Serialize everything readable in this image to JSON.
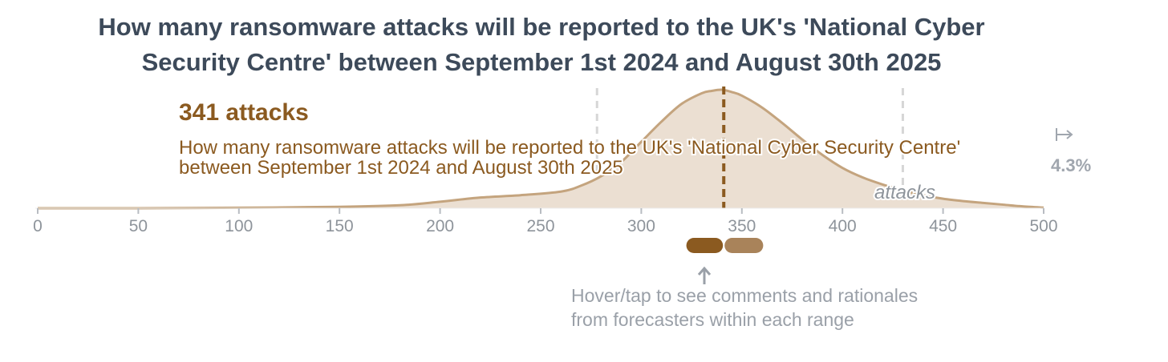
{
  "header": {
    "title_line1": "How many ransomware attacks will be reported to the UK's 'National Cyber",
    "title_line2": "Security Centre' between September 1st 2024 and August 30th 2025"
  },
  "chart_data": {
    "type": "area",
    "question_line1": "How many ransomware attacks will be reported to the UK's 'National Cyber Security Centre'",
    "question_line2": "between September 1st 2024 and August 30th 2025",
    "median_label": "341 attacks",
    "median": 341,
    "unit_label": "attacks",
    "xlim": [
      0,
      500
    ],
    "x_ticks": [
      0,
      50,
      100,
      150,
      200,
      250,
      300,
      350,
      400,
      450,
      500
    ],
    "quantile_lines": [
      278,
      341,
      430
    ],
    "above_range_label": "4.3%",
    "density": {
      "x": [
        0,
        50,
        100,
        150,
        180,
        200,
        220,
        240,
        260,
        270,
        280,
        290,
        300,
        310,
        320,
        330,
        335,
        340,
        345,
        350,
        360,
        370,
        380,
        390,
        400,
        410,
        420,
        430,
        440,
        450,
        460,
        470,
        480,
        490,
        500
      ],
      "y": [
        0.0,
        0.0,
        0.004,
        0.012,
        0.025,
        0.055,
        0.09,
        0.11,
        0.14,
        0.19,
        0.27,
        0.39,
        0.56,
        0.73,
        0.88,
        0.97,
        0.99,
        1.0,
        0.98,
        0.95,
        0.85,
        0.72,
        0.58,
        0.45,
        0.34,
        0.26,
        0.2,
        0.15,
        0.11,
        0.08,
        0.06,
        0.045,
        0.03,
        0.015,
        0.005
      ]
    },
    "range_buttons": [
      {
        "from": 322,
        "to": 341,
        "color": "#8b5a20"
      },
      {
        "from": 341,
        "to": 361,
        "color": "#a9835a"
      }
    ]
  },
  "hint": {
    "line1": "Hover/tap to see comments and rationales",
    "line2": "from forecasters within each range"
  },
  "colors": {
    "fill": "#ebdfd2",
    "stroke": "#c4a47e",
    "median": "#8b5a20",
    "axis_text": "#8e949b",
    "quantile": "#d6d6d6",
    "title": "#3d4a5a",
    "hint": "#9aa0a8"
  }
}
